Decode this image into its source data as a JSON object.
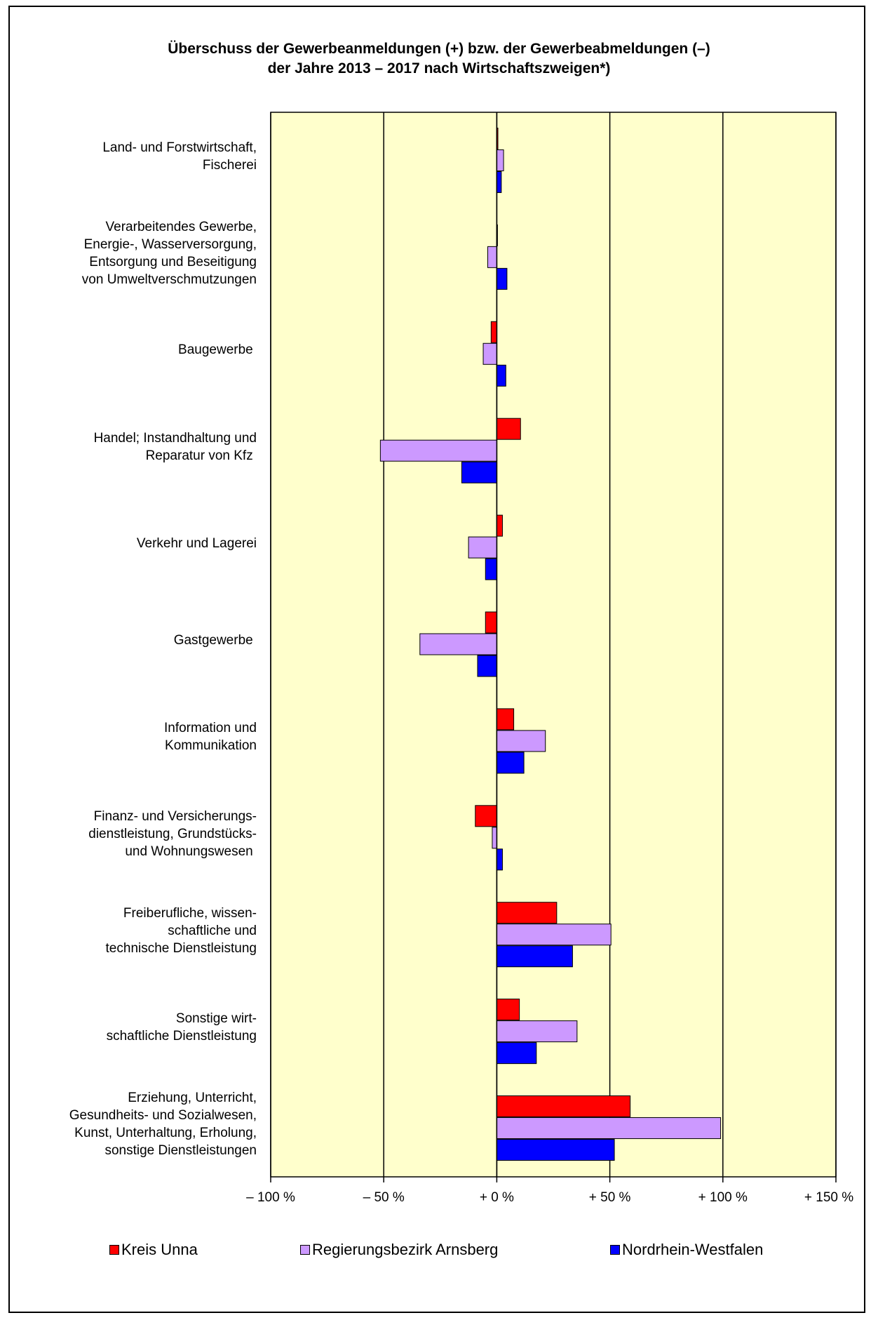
{
  "chart_data": {
    "type": "bar",
    "orientation": "horizontal",
    "title_lines": [
      "Überschuss der Gewerbeanmeldungen (+) bzw. der Gewerbeabmeldungen (–)",
      "der Jahre 2013 – 2017 nach Wirtschaftszweigen*)"
    ],
    "categories": [
      "Land- und Forstwirtschaft,\nFischerei",
      "Verarbeitendes Gewerbe,\nEnergie-, Wasserversorgung,\nEntsorgung und Beseitigung\nvon Umweltverschmutzungen",
      "Baugewerbe ",
      "Handel; Instandhaltung und\nReparatur von Kfz ",
      "Verkehr und Lagerei",
      "Gastgewerbe ",
      "Information und\nKommunikation",
      "Finanz- und Versicherungs-\ndienstleistung, Grundstücks-\nund Wohnungswesen ",
      "Freiberufliche, wissen-\nschaftliche und\ntechnische Dienstleistung",
      "Sonstige wirt-\nschaftliche Dienstleistung",
      "Erziehung, Unterricht,\nGesundheits- und Sozialwesen,\nKunst, Unterhaltung, Erholung,\nsonstige Dienstleistungen"
    ],
    "series": [
      {
        "name": "Kreis Unna",
        "color": "#ff0000",
        "values": [
          0.5,
          0.3,
          -2.5,
          10.5,
          2.5,
          -5,
          7.5,
          -9.5,
          26.5,
          10,
          59
        ]
      },
      {
        "name": "Regierungsbezirk Arnsberg",
        "color": "#cc99ff",
        "values": [
          3,
          -4,
          -6,
          -51.5,
          -12.5,
          -34,
          21.5,
          -2,
          50.5,
          35.5,
          99
        ]
      },
      {
        "name": "Nordrhein-Westfalen",
        "color": "#0000ff",
        "values": [
          2,
          4.5,
          4,
          -15.5,
          -5,
          -8.5,
          12,
          2.5,
          33.5,
          17.5,
          52
        ]
      }
    ],
    "xlim": [
      -100,
      150
    ],
    "ticks": [
      -100,
      -50,
      0,
      50,
      100,
      150
    ],
    "tick_labels": [
      "– 100 %",
      "– 50 %",
      "+ 0 %",
      "+ 50 %",
      "+ 100 %",
      "+ 150 %"
    ],
    "grid": true,
    "plot_background": "#ffffcc",
    "legend_position": "bottom"
  }
}
